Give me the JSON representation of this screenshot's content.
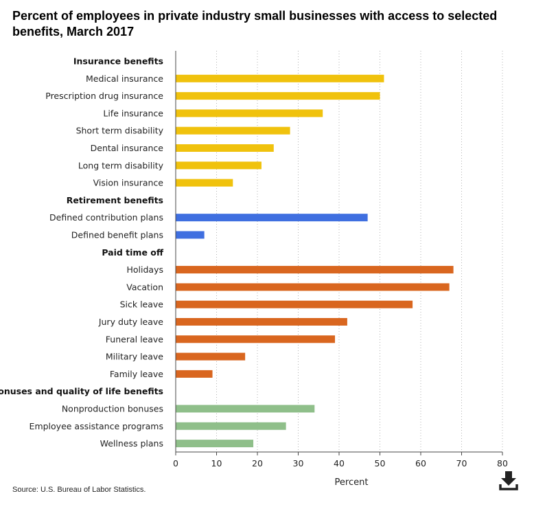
{
  "chart_data": {
    "type": "bar",
    "orientation": "horizontal",
    "title": "Percent of employees in private industry small businesses with access to selected benefits, March 2017",
    "xlabel": "Percent",
    "ylabel": "",
    "xlim": [
      0,
      80
    ],
    "xticks": [
      0,
      10,
      20,
      30,
      40,
      50,
      60,
      70,
      80
    ],
    "grid": "vertical dotted",
    "groups": [
      {
        "name": "Insurance benefits",
        "color": "#f0c20d",
        "categories": [
          "Medical insurance",
          "Prescription drug insurance",
          "Life insurance",
          "Short term disability",
          "Dental insurance",
          "Long term disability",
          "Vision insurance"
        ],
        "values": [
          51,
          50,
          36,
          28,
          24,
          21,
          14
        ]
      },
      {
        "name": "Retirement benefits",
        "color": "#3f6fe0",
        "categories": [
          "Defined contribution plans",
          "Defined benefit plans"
        ],
        "values": [
          47,
          7
        ]
      },
      {
        "name": "Paid time off",
        "color": "#d9661f",
        "categories": [
          "Holidays",
          "Vacation",
          "Sick leave",
          "Jury duty leave",
          "Funeral leave",
          "Military leave",
          "Family leave"
        ],
        "values": [
          68,
          67,
          58,
          42,
          39,
          17,
          9
        ]
      },
      {
        "name": "Bonuses and quality of life benefits",
        "color": "#8fbf8a",
        "categories": [
          "Nonproduction bonuses",
          "Employee assistance programs",
          "Wellness plans"
        ],
        "values": [
          34,
          27,
          19
        ]
      }
    ]
  },
  "source": "Source: U.S. Bureau of Labor Statistics.",
  "icons": {
    "download": "download-icon"
  }
}
